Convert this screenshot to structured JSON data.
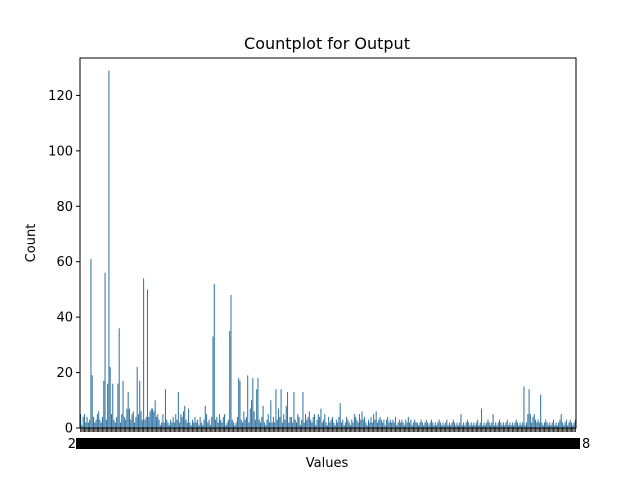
{
  "chart_data": {
    "type": "bar",
    "title": "Countplot for Output",
    "xlabel": "Values",
    "ylabel": "Count",
    "ylim": [
      0,
      133.5
    ],
    "yticks": [
      0,
      20,
      40,
      60,
      80,
      100,
      120
    ],
    "grid": false,
    "bar_color": "#3274a1",
    "x_tick_labels_left": "2",
    "x_tick_labels_right": "8",
    "values": [
      5,
      1,
      4,
      5,
      2,
      4,
      2,
      3,
      61,
      19,
      4,
      2,
      3,
      5,
      6,
      3,
      2,
      4,
      17,
      56,
      3,
      16,
      129,
      22,
      5,
      16,
      3,
      2,
      4,
      16,
      36,
      2,
      5,
      17,
      4,
      3,
      7,
      13,
      7,
      3,
      5,
      6,
      2,
      4,
      22,
      5,
      17,
      6,
      3,
      54,
      3,
      4,
      50,
      4,
      6,
      7,
      7,
      6,
      10,
      4,
      5,
      3,
      1,
      2,
      5,
      2,
      14,
      3,
      2,
      1,
      3,
      2,
      4,
      2,
      5,
      3,
      13,
      2,
      5,
      4,
      6,
      8,
      3,
      2,
      7,
      2,
      1,
      3,
      2,
      4,
      2,
      3,
      1,
      4,
      2,
      1,
      3,
      8,
      5,
      2,
      3,
      1,
      4,
      33,
      52,
      3,
      4,
      2,
      5,
      3,
      2,
      4,
      5,
      1,
      2,
      3,
      35,
      48,
      3,
      2,
      1,
      2,
      4,
      18,
      17,
      3,
      2,
      6,
      3,
      4,
      19,
      2,
      7,
      10,
      18,
      6,
      3,
      14,
      18,
      3,
      2,
      4,
      8,
      2,
      1,
      3,
      5,
      2,
      10,
      2,
      4,
      2,
      14,
      3,
      7,
      4,
      14,
      2,
      5,
      3,
      8,
      13,
      2,
      4,
      4,
      2,
      13,
      3,
      2,
      5,
      4,
      1,
      3,
      13,
      2,
      5,
      3,
      4,
      6,
      3,
      2,
      4,
      5,
      1,
      3,
      5,
      4,
      7,
      2,
      3,
      5,
      2,
      1,
      4,
      2,
      3,
      4,
      2,
      1,
      3,
      2,
      4,
      9,
      2,
      3,
      1,
      2,
      4,
      3,
      2,
      1,
      3,
      2,
      5,
      4,
      3,
      2,
      5,
      3,
      6,
      3,
      4,
      2,
      1,
      3,
      2,
      4,
      2,
      5,
      3,
      6,
      2,
      3,
      4,
      3,
      2,
      3,
      1,
      3,
      4,
      2,
      3,
      2,
      3,
      2,
      4,
      1,
      2,
      3,
      2,
      3,
      2,
      1,
      3,
      2,
      4,
      2,
      3,
      1,
      2,
      3,
      2,
      2,
      1,
      2,
      3,
      2,
      1,
      2,
      3,
      2,
      1,
      2,
      3,
      2,
      1,
      2,
      1,
      2,
      3,
      2,
      1,
      2,
      1,
      2,
      3,
      1,
      2,
      1,
      2,
      3,
      2,
      1,
      2,
      1,
      2,
      5,
      1,
      2,
      1,
      2,
      3,
      2,
      1,
      2,
      1,
      2,
      1,
      2,
      3,
      1,
      2,
      7,
      1,
      2,
      1,
      2,
      3,
      2,
      1,
      2,
      5,
      1,
      2,
      1,
      2,
      3,
      2,
      1,
      2,
      1,
      2,
      3,
      1,
      2,
      1,
      2,
      1,
      2,
      3,
      2,
      1,
      2,
      1,
      2,
      15,
      1,
      2,
      5,
      14,
      5,
      2,
      4,
      5,
      3,
      2,
      3,
      2,
      12,
      2,
      1,
      2,
      3,
      2,
      1,
      2,
      1,
      2,
      3,
      1,
      2,
      1,
      2,
      3,
      5,
      2,
      1,
      2,
      3,
      1,
      2,
      3,
      2,
      1,
      2,
      3
    ]
  }
}
